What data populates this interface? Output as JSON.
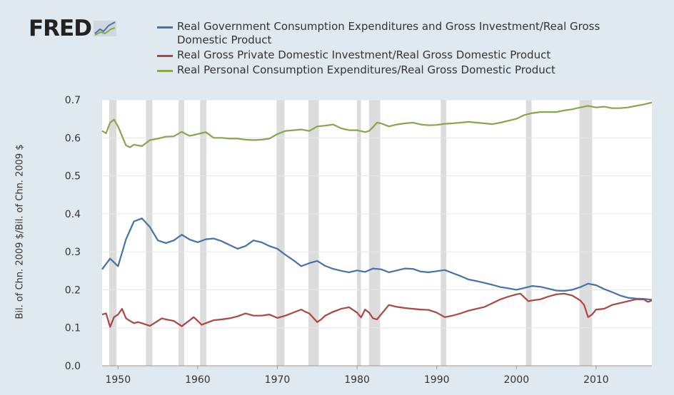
{
  "brand": {
    "name": "FRED"
  },
  "chart_data": {
    "type": "line",
    "ylabel": "Bil. of Chn. 2009 $/Bil. of Chn. 2009 $",
    "xlim": [
      1948,
      2017
    ],
    "ylim": [
      0,
      0.7
    ],
    "yticks": [
      "0.0",
      "0.1",
      "0.2",
      "0.3",
      "0.4",
      "0.5",
      "0.6",
      "0.7"
    ],
    "xticks": [
      "1950",
      "1960",
      "1970",
      "1980",
      "1990",
      "2000",
      "2010"
    ],
    "grid": true,
    "legend_position": "top",
    "recessions": [
      [
        1948.9,
        1949.8
      ],
      [
        1953.5,
        1954.3
      ],
      [
        1957.6,
        1958.3
      ],
      [
        1960.3,
        1961.1
      ],
      [
        1969.9,
        1970.9
      ],
      [
        1973.9,
        1975.2
      ],
      [
        1980.0,
        1980.5
      ],
      [
        1981.5,
        1982.9
      ],
      [
        1990.5,
        1991.2
      ],
      [
        2001.2,
        2001.9
      ],
      [
        2007.9,
        2009.5
      ]
    ],
    "series": [
      {
        "name": "Real Government Consumption Expenditures and Gross Investment/Real Gross Domestic Product",
        "color": "#4572a7",
        "x": [
          1948,
          1949,
          1950,
          1951,
          1952,
          1953,
          1954,
          1955,
          1956,
          1957,
          1958,
          1959,
          1960,
          1961,
          1962,
          1963,
          1964,
          1965,
          1966,
          1967,
          1968,
          1969,
          1970,
          1971,
          1972,
          1973,
          1974,
          1975,
          1976,
          1977,
          1978,
          1979,
          1980,
          1981,
          1982,
          1983,
          1984,
          1985,
          1986,
          1987,
          1988,
          1989,
          1990,
          1991,
          1992,
          1993,
          1994,
          1995,
          1996,
          1997,
          1998,
          1999,
          2000,
          2001,
          2002,
          2003,
          2004,
          2005,
          2006,
          2007,
          2008,
          2009,
          2010,
          2011,
          2012,
          2013,
          2014,
          2015,
          2016,
          2017
        ],
        "values": [
          0.254,
          0.282,
          0.262,
          0.333,
          0.38,
          0.388,
          0.365,
          0.33,
          0.323,
          0.33,
          0.345,
          0.332,
          0.325,
          0.333,
          0.335,
          0.328,
          0.318,
          0.308,
          0.315,
          0.33,
          0.325,
          0.315,
          0.308,
          0.292,
          0.278,
          0.262,
          0.27,
          0.276,
          0.263,
          0.255,
          0.25,
          0.246,
          0.251,
          0.247,
          0.256,
          0.254,
          0.246,
          0.251,
          0.256,
          0.255,
          0.248,
          0.246,
          0.249,
          0.252,
          0.244,
          0.236,
          0.227,
          0.223,
          0.218,
          0.213,
          0.207,
          0.204,
          0.2,
          0.205,
          0.21,
          0.208,
          0.203,
          0.198,
          0.197,
          0.2,
          0.207,
          0.216,
          0.212,
          0.202,
          0.194,
          0.185,
          0.179,
          0.177,
          0.176,
          0.174
        ]
      },
      {
        "name": "Real Gross Private Domestic Investment/Real Gross Domestic Product",
        "color": "#aa4643",
        "x": [
          1948,
          1948.5,
          1949,
          1949.5,
          1950,
          1950.5,
          1951,
          1951.5,
          1952,
          1952.5,
          1953,
          1954,
          1955,
          1955.5,
          1956,
          1957,
          1958,
          1958.5,
          1959,
          1959.5,
          1960,
          1960.5,
          1961,
          1962,
          1963,
          1964,
          1965,
          1966,
          1967,
          1968,
          1969,
          1970,
          1971,
          1972,
          1973,
          1973.5,
          1974,
          1975,
          1975.5,
          1976,
          1977,
          1978,
          1979,
          1980,
          1980.5,
          1981,
          1981.5,
          1982,
          1982.5,
          1983,
          1984,
          1985,
          1986,
          1987,
          1988,
          1989,
          1990,
          1991,
          1992,
          1993,
          1994,
          1995,
          1996,
          1997,
          1998,
          1999,
          2000,
          2000.5,
          2001,
          2001.5,
          2002,
          2003,
          2004,
          2005,
          2006,
          2007,
          2008,
          2008.5,
          2009,
          2009.5,
          2010,
          2011,
          2012,
          2013,
          2014,
          2015,
          2016,
          2016.5,
          2017
        ],
        "values": [
          0.135,
          0.138,
          0.102,
          0.128,
          0.135,
          0.15,
          0.125,
          0.118,
          0.112,
          0.115,
          0.112,
          0.105,
          0.118,
          0.125,
          0.122,
          0.118,
          0.104,
          0.112,
          0.12,
          0.128,
          0.118,
          0.108,
          0.112,
          0.12,
          0.122,
          0.125,
          0.13,
          0.138,
          0.132,
          0.132,
          0.135,
          0.126,
          0.132,
          0.14,
          0.148,
          0.142,
          0.138,
          0.115,
          0.122,
          0.132,
          0.142,
          0.15,
          0.154,
          0.14,
          0.127,
          0.148,
          0.14,
          0.125,
          0.122,
          0.135,
          0.16,
          0.155,
          0.152,
          0.15,
          0.148,
          0.147,
          0.14,
          0.128,
          0.132,
          0.138,
          0.145,
          0.15,
          0.155,
          0.165,
          0.175,
          0.182,
          0.188,
          0.19,
          0.18,
          0.17,
          0.172,
          0.175,
          0.182,
          0.188,
          0.19,
          0.185,
          0.172,
          0.16,
          0.128,
          0.135,
          0.148,
          0.15,
          0.16,
          0.165,
          0.17,
          0.175,
          0.175,
          0.168,
          0.172
        ]
      },
      {
        "name": "Real Personal Consumption Expenditures/Real Gross Domestic Product",
        "color": "#89a54e",
        "x": [
          1948,
          1948.5,
          1949,
          1949.5,
          1950,
          1950.3,
          1950.6,
          1951,
          1951.5,
          1952,
          1953,
          1954,
          1955,
          1956,
          1957,
          1958,
          1958.5,
          1959,
          1960,
          1961,
          1962,
          1963,
          1964,
          1965,
          1966,
          1967,
          1968,
          1969,
          1970,
          1971,
          1972,
          1973,
          1974,
          1975,
          1976,
          1977,
          1978,
          1979,
          1980,
          1981,
          1981.5,
          1982,
          1982.5,
          1983,
          1984,
          1985,
          1986,
          1987,
          1988,
          1989,
          1990,
          1991,
          1992,
          1993,
          1994,
          1995,
          1996,
          1997,
          1998,
          1999,
          2000,
          2001,
          2002,
          2003,
          2004,
          2005,
          2006,
          2007,
          2008,
          2009,
          2010,
          2011,
          2012,
          2013,
          2014,
          2015,
          2016,
          2017
        ],
        "values": [
          0.618,
          0.612,
          0.64,
          0.648,
          0.63,
          0.615,
          0.6,
          0.58,
          0.575,
          0.582,
          0.578,
          0.594,
          0.598,
          0.603,
          0.604,
          0.616,
          0.61,
          0.605,
          0.61,
          0.615,
          0.6,
          0.6,
          0.598,
          0.598,
          0.595,
          0.594,
          0.595,
          0.598,
          0.61,
          0.618,
          0.62,
          0.622,
          0.618,
          0.63,
          0.632,
          0.635,
          0.625,
          0.62,
          0.62,
          0.615,
          0.618,
          0.628,
          0.64,
          0.638,
          0.63,
          0.635,
          0.638,
          0.64,
          0.635,
          0.633,
          0.634,
          0.637,
          0.638,
          0.64,
          0.642,
          0.64,
          0.638,
          0.636,
          0.64,
          0.645,
          0.65,
          0.66,
          0.665,
          0.668,
          0.668,
          0.668,
          0.672,
          0.675,
          0.68,
          0.684,
          0.68,
          0.682,
          0.678,
          0.678,
          0.68,
          0.684,
          0.688,
          0.693
        ]
      }
    ]
  }
}
